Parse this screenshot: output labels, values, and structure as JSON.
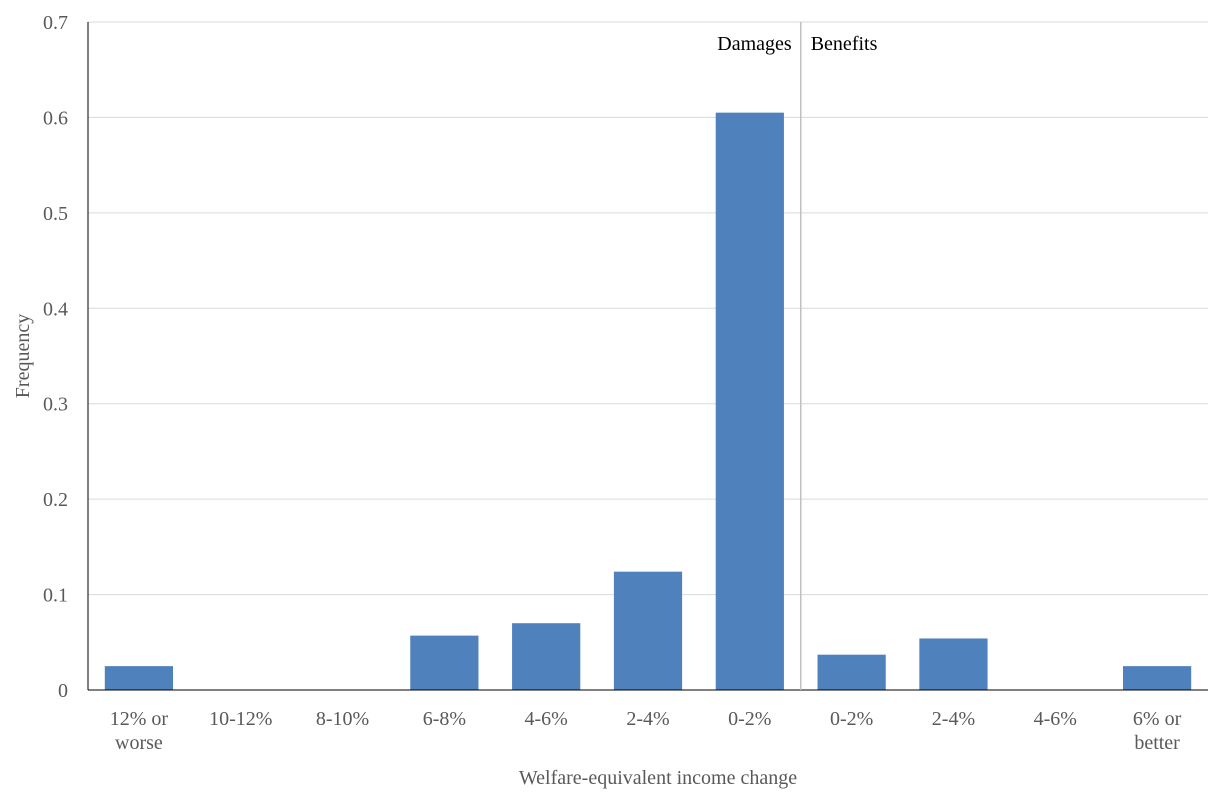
{
  "chart_data": {
    "type": "bar",
    "title": "",
    "xlabel": "Welfare-equivalent income change",
    "ylabel": "Frequency",
    "ylim": [
      0,
      0.7
    ],
    "yticks": [
      "0",
      "0.1",
      "0.2",
      "0.3",
      "0.4",
      "0.5",
      "0.6",
      "0.7"
    ],
    "grid": true,
    "categories": [
      [
        "12% or",
        "worse"
      ],
      [
        "10-12%"
      ],
      [
        "8-10%"
      ],
      [
        "6-8%"
      ],
      [
        "4-6%"
      ],
      [
        "2-4%"
      ],
      [
        "0-2%"
      ],
      [
        "0-2%"
      ],
      [
        "2-4%"
      ],
      [
        "4-6%"
      ],
      [
        "6% or",
        "better"
      ]
    ],
    "values": [
      0.025,
      0,
      0,
      0.057,
      0.07,
      0.124,
      0.605,
      0.037,
      0.054,
      0,
      0.025
    ],
    "bar_color": "#4f81bd",
    "grid_color": "#d9d9d9",
    "divider": {
      "after_category_index": 6,
      "left_label": "Damages",
      "right_label": "Benefits",
      "color": "#bfbfbf"
    }
  }
}
